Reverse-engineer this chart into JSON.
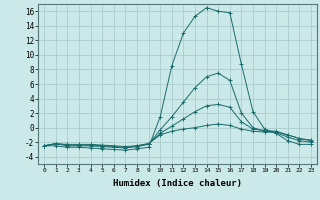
{
  "title": "",
  "xlabel": "Humidex (Indice chaleur)",
  "ylabel": "",
  "background_color": "#cce9e9",
  "grid_color": "#aacccc",
  "line_color": "#1a6b6b",
  "xlim": [
    -0.5,
    23.5
  ],
  "ylim": [
    -5,
    17
  ],
  "yticks": [
    -4,
    -2,
    0,
    2,
    4,
    6,
    8,
    10,
    12,
    14,
    16
  ],
  "xticks": [
    0,
    1,
    2,
    3,
    4,
    5,
    6,
    7,
    8,
    9,
    10,
    11,
    12,
    13,
    14,
    15,
    16,
    17,
    18,
    19,
    20,
    21,
    22,
    23
  ],
  "series": [
    {
      "x": [
        0,
        1,
        2,
        3,
        4,
        5,
        6,
        7,
        8,
        9,
        10,
        11,
        12,
        13,
        14,
        15,
        16,
        17,
        18,
        19,
        20,
        21,
        22,
        23
      ],
      "y": [
        -2.5,
        -2.5,
        -2.7,
        -2.7,
        -2.8,
        -2.9,
        -3.0,
        -3.1,
        -2.9,
        -2.7,
        1.5,
        8.5,
        13.0,
        15.3,
        16.5,
        16.0,
        15.8,
        8.7,
        2.2,
        -0.2,
        -0.8,
        -1.8,
        -2.3,
        -2.3
      ]
    },
    {
      "x": [
        0,
        1,
        2,
        3,
        4,
        5,
        6,
        7,
        8,
        9,
        10,
        11,
        12,
        13,
        14,
        15,
        16,
        17,
        18,
        19,
        20,
        21,
        22,
        23
      ],
      "y": [
        -2.5,
        -2.2,
        -2.5,
        -2.5,
        -2.5,
        -2.6,
        -2.7,
        -2.8,
        -2.6,
        -2.3,
        -0.3,
        1.5,
        3.5,
        5.5,
        7.0,
        7.5,
        6.5,
        2.0,
        0.0,
        -0.5,
        -0.7,
        -1.3,
        -1.8,
        -2.0
      ]
    },
    {
      "x": [
        0,
        1,
        2,
        3,
        4,
        5,
        6,
        7,
        8,
        9,
        10,
        11,
        12,
        13,
        14,
        15,
        16,
        17,
        18,
        19,
        20,
        21,
        22,
        23
      ],
      "y": [
        -2.5,
        -2.2,
        -2.4,
        -2.4,
        -2.4,
        -2.5,
        -2.6,
        -2.7,
        -2.5,
        -2.2,
        -0.8,
        0.2,
        1.2,
        2.2,
        3.0,
        3.2,
        2.8,
        0.8,
        -0.2,
        -0.4,
        -0.5,
        -1.0,
        -1.5,
        -1.8
      ]
    },
    {
      "x": [
        0,
        1,
        2,
        3,
        4,
        5,
        6,
        7,
        8,
        9,
        10,
        11,
        12,
        13,
        14,
        15,
        16,
        17,
        18,
        19,
        20,
        21,
        22,
        23
      ],
      "y": [
        -2.5,
        -2.2,
        -2.3,
        -2.3,
        -2.3,
        -2.4,
        -2.5,
        -2.6,
        -2.5,
        -2.2,
        -1.0,
        -0.5,
        -0.2,
        0.0,
        0.3,
        0.5,
        0.3,
        -0.2,
        -0.5,
        -0.6,
        -0.6,
        -1.0,
        -1.5,
        -1.7
      ]
    }
  ]
}
